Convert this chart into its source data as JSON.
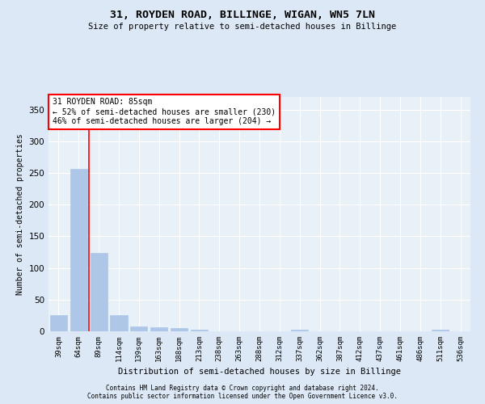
{
  "title": "31, ROYDEN ROAD, BILLINGE, WIGAN, WN5 7LN",
  "subtitle": "Size of property relative to semi-detached houses in Billinge",
  "xlabel": "Distribution of semi-detached houses by size in Billinge",
  "ylabel": "Number of semi-detached properties",
  "categories": [
    "39sqm",
    "64sqm",
    "89sqm",
    "114sqm",
    "139sqm",
    "163sqm",
    "188sqm",
    "213sqm",
    "238sqm",
    "263sqm",
    "288sqm",
    "312sqm",
    "337sqm",
    "362sqm",
    "387sqm",
    "412sqm",
    "437sqm",
    "461sqm",
    "486sqm",
    "511sqm",
    "536sqm"
  ],
  "values": [
    25,
    257,
    124,
    26,
    8,
    7,
    5,
    3,
    0,
    0,
    0,
    0,
    3,
    0,
    0,
    0,
    0,
    0,
    0,
    3,
    0
  ],
  "bar_color": "#aec6e8",
  "vline_x": 1.5,
  "vline_color": "red",
  "annotation_title": "31 ROYDEN ROAD: 85sqm",
  "annotation_line1": "← 52% of semi-detached houses are smaller (230)",
  "annotation_line2": "46% of semi-detached houses are larger (204) →",
  "annotation_box_color": "white",
  "annotation_box_edgecolor": "red",
  "ylim": [
    0,
    370
  ],
  "yticks": [
    0,
    50,
    100,
    150,
    200,
    250,
    300,
    350
  ],
  "footer1": "Contains HM Land Registry data © Crown copyright and database right 2024.",
  "footer2": "Contains public sector information licensed under the Open Government Licence v3.0.",
  "bg_color": "#dce8f5",
  "plot_bg_color": "#e8f0f8"
}
